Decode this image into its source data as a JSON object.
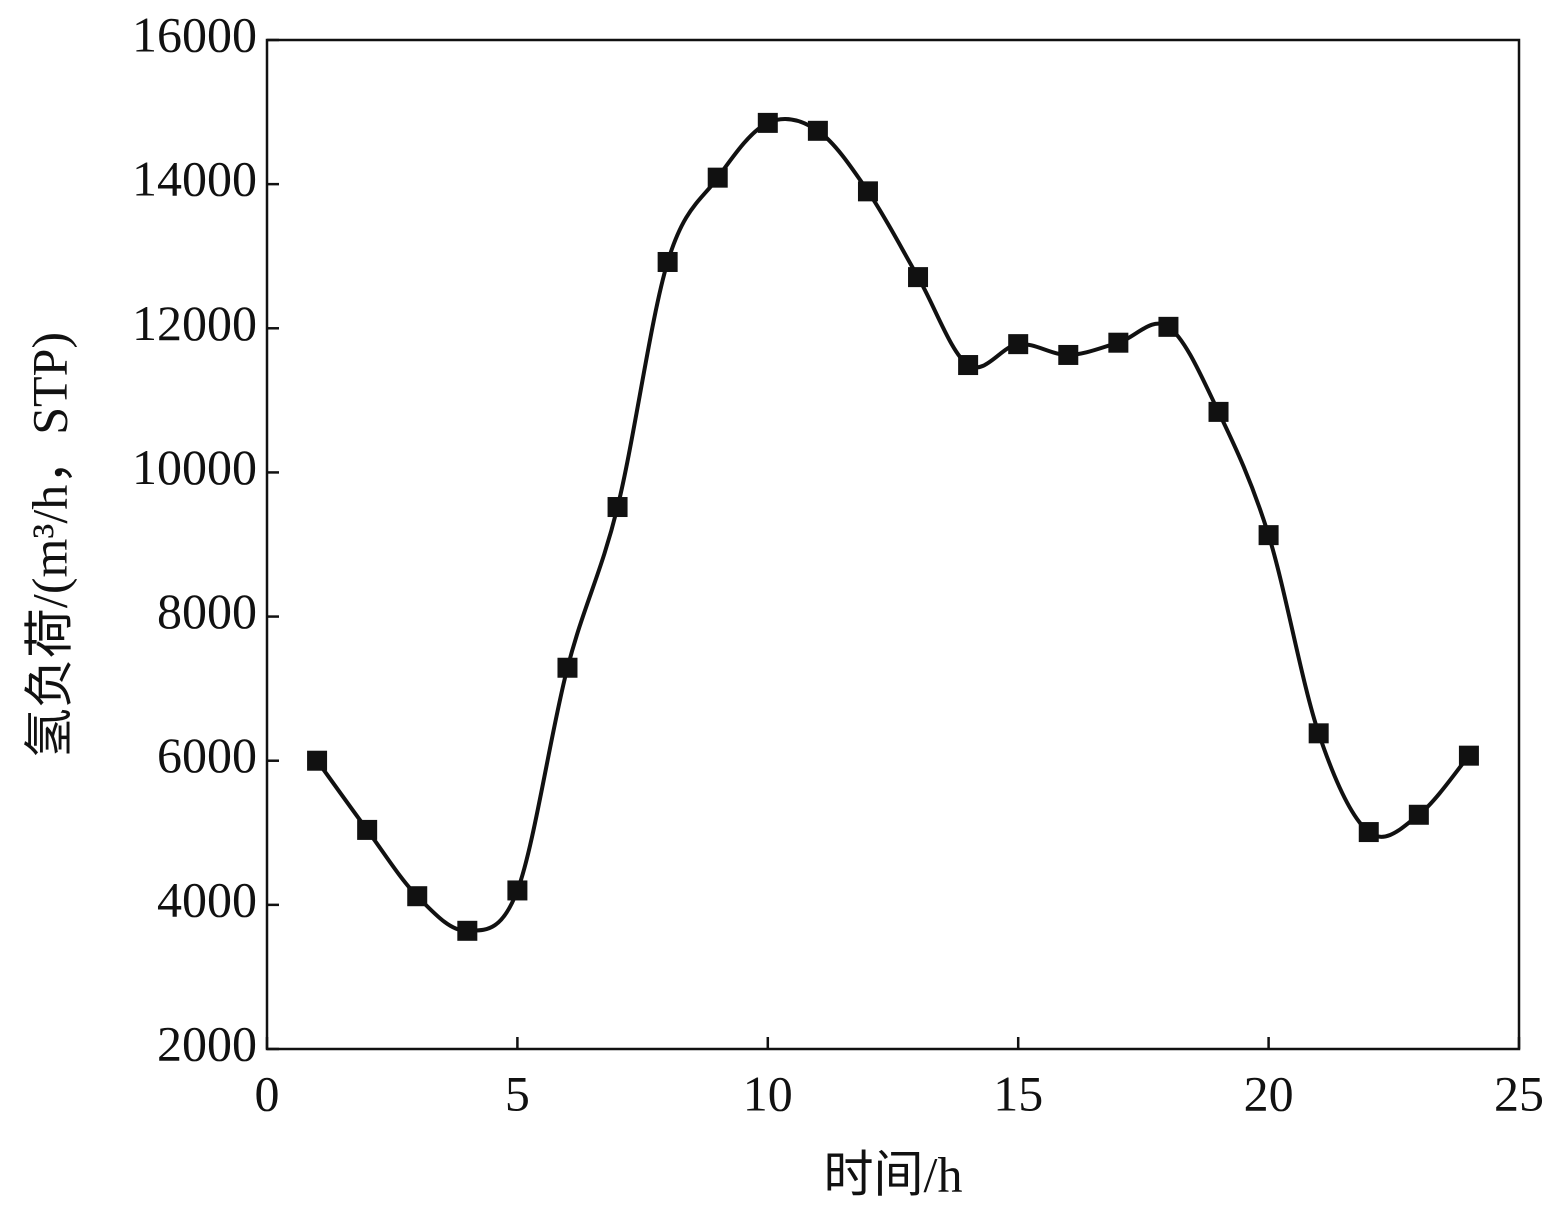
{
  "chart_data": {
    "type": "line",
    "x_label": "时间/h",
    "y_label": "氢负荷/(m³/h，STP)",
    "x": [
      1,
      2,
      3,
      4,
      5,
      6,
      7,
      8,
      9,
      10,
      11,
      12,
      13,
      14,
      15,
      16,
      17,
      18,
      19,
      20,
      21,
      22,
      23,
      24
    ],
    "series": [
      {
        "name": null,
        "color": "#111111",
        "values": [
          6000,
          5040,
          4120,
          3640,
          4200,
          7290,
          9520,
          12920,
          14090,
          14850,
          14740,
          13900,
          12710,
          11490,
          11780,
          11630,
          11800,
          12020,
          10840,
          9130,
          6380,
          5010,
          5250,
          6070
        ]
      }
    ],
    "xlim": [
      0,
      25
    ],
    "xticks": [
      0,
      5,
      10,
      15,
      20,
      25
    ],
    "ylim": [
      2000,
      16000
    ],
    "yticks": [
      2000,
      4000,
      6000,
      8000,
      10000,
      12000,
      14000,
      16000
    ],
    "smooth": true,
    "marker": "square",
    "grid": false
  }
}
